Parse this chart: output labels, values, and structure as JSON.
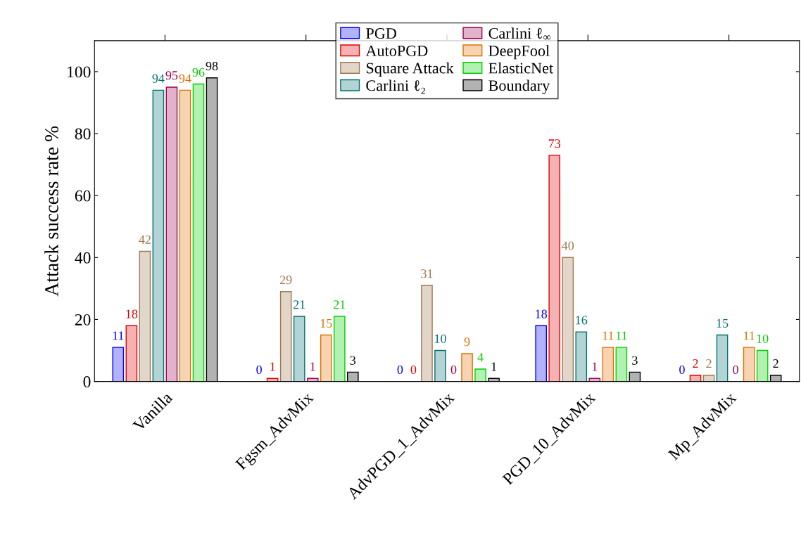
{
  "chart_data": {
    "type": "bar",
    "ylabel": "Attack success rate %",
    "categories": [
      "Vanilla",
      "Fgsm_AdvMix",
      "AdvPGD_1_AdvMix",
      "PGD_10_AdvMix",
      "Mp_AdvMix"
    ],
    "series": [
      {
        "name": "PGD",
        "color": "#0000ff",
        "values": [
          11,
          0,
          0,
          18,
          0
        ]
      },
      {
        "name": "AutoPGD",
        "color": "#e00000",
        "values": [
          18,
          1,
          0,
          73,
          2
        ]
      },
      {
        "name": "Square Attack",
        "color": "#a0774f",
        "values": [
          42,
          29,
          31,
          40,
          2
        ]
      },
      {
        "name": "Carlini ℓ₂",
        "color": "#007070",
        "values": [
          94,
          21,
          10,
          16,
          15
        ]
      },
      {
        "name": "Carlini ℓ$_{∞}$",
        "color": "#a0004d",
        "values": [
          95,
          1,
          0,
          1,
          0
        ]
      },
      {
        "name": "DeepFool",
        "color": "#e07000",
        "values": [
          94,
          15,
          9,
          11,
          11
        ]
      },
      {
        "name": "ElasticNet",
        "color": "#00d000",
        "values": [
          96,
          21,
          4,
          11,
          10
        ]
      },
      {
        "name": "Boundary",
        "color": "#000000",
        "values": [
          98,
          3,
          1,
          3,
          2
        ]
      }
    ],
    "ylim": [
      0,
      110
    ],
    "yticks": [
      0,
      20,
      40,
      60,
      80,
      100
    ],
    "data_labels": true,
    "legend": "top",
    "grid": false
  }
}
